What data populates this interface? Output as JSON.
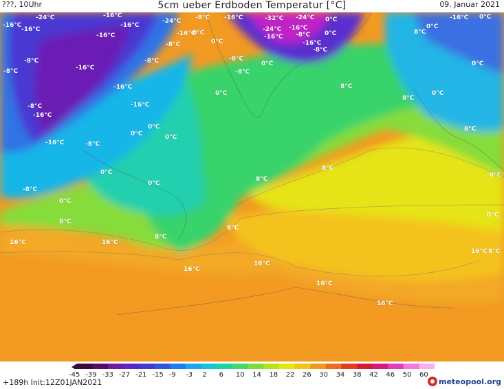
{
  "header": {
    "location": "???, 10Uhr",
    "title": "5cm ueber Erdboden Temperatur [°C]",
    "date": "09. Januar 2021"
  },
  "colorbar": {
    "ticks": [
      "-45",
      "-39",
      "-33",
      "-27",
      "-21",
      "-15",
      "-9",
      "-3",
      "2",
      "6",
      "10",
      "14",
      "18",
      "22",
      "26",
      "30",
      "34",
      "38",
      "42",
      "46",
      "50",
      "60"
    ],
    "colors": [
      "#3b0a3a",
      "#560d6a",
      "#6e1ba1",
      "#5b26c7",
      "#4438d4",
      "#2f55e0",
      "#1c7ff0",
      "#18a9f2",
      "#12c6d8",
      "#1ad59f",
      "#44d86b",
      "#7edc3a",
      "#b8e21c",
      "#e6e610",
      "#f2c617",
      "#f09a1c",
      "#ec6d1f",
      "#e33d1f",
      "#d81a3a",
      "#d61c7a",
      "#e33fb8",
      "#f07ae0",
      "#f7b0ee"
    ]
  },
  "labels": [
    {
      "text": "-24°C"
    },
    {
      "text": "-16°C"
    },
    {
      "text": "-16°C"
    },
    {
      "text": "-16°C"
    },
    {
      "text": "-24°C"
    },
    {
      "text": "-8°C"
    },
    {
      "text": "-16°C"
    },
    {
      "text": "-16°C"
    },
    {
      "text": "-32°C"
    },
    {
      "text": "-24°C"
    },
    {
      "text": "-16°C"
    },
    {
      "text": "-24°C"
    },
    {
      "text": "0°C"
    },
    {
      "text": "-16°C"
    },
    {
      "text": "-8°C"
    },
    {
      "text": "-16°C"
    },
    {
      "text": "0°C"
    },
    {
      "text": "-16°C"
    },
    {
      "text": "-8°C"
    },
    {
      "text": "-16°C"
    },
    {
      "text": "-16°C"
    },
    {
      "text": "-8°C"
    },
    {
      "text": "0°C"
    },
    {
      "text": "0°C"
    },
    {
      "text": "8°C"
    },
    {
      "text": "-8°C"
    },
    {
      "text": "-16°C"
    },
    {
      "text": "-8°C"
    },
    {
      "text": "0°C"
    },
    {
      "text": "-8°C"
    },
    {
      "text": "-8°C"
    },
    {
      "text": "0°C"
    },
    {
      "text": "-16°C"
    },
    {
      "text": "-8°C"
    },
    {
      "text": "8°C"
    },
    {
      "text": "-16°C"
    },
    {
      "text": "-8°C"
    },
    {
      "text": "0°C"
    },
    {
      "text": "8°C"
    },
    {
      "text": "-16°C"
    },
    {
      "text": "0°C"
    },
    {
      "text": "0°C"
    },
    {
      "text": "-16°C"
    },
    {
      "text": "-8°C"
    },
    {
      "text": "0°C"
    },
    {
      "text": "8°C"
    },
    {
      "text": "8°C"
    },
    {
      "text": "0°C"
    },
    {
      "text": "0°C"
    },
    {
      "text": "-8°C"
    },
    {
      "text": "0°C"
    },
    {
      "text": "8°C"
    },
    {
      "text": "0°C"
    },
    {
      "text": "0°C"
    },
    {
      "text": "8°C"
    },
    {
      "text": "16°C"
    },
    {
      "text": "16°C"
    },
    {
      "text": "8°C"
    },
    {
      "text": "8°C"
    },
    {
      "text": "16°C"
    },
    {
      "text": "16°C"
    },
    {
      "text": "16°C"
    },
    {
      "text": "16°C"
    },
    {
      "text": "8°C"
    },
    {
      "text": "16°C"
    },
    {
      "text": "0°C"
    },
    {
      "text": "0°C"
    },
    {
      "text": "0°C"
    }
  ],
  "footer": {
    "run_info": "+189h  Init:12Z01JAN2021",
    "brand": "meteopool.org"
  }
}
